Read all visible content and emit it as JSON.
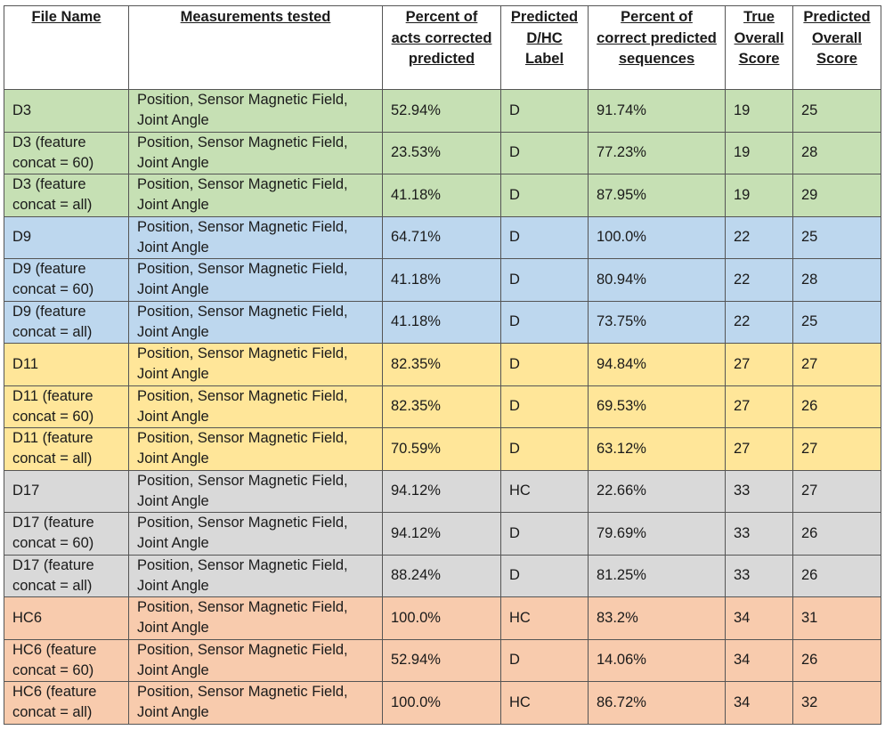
{
  "table": {
    "headers": [
      "File Name",
      "Measurements tested",
      "Percent of acts corrected predicted",
      "Predicted D/HC Label",
      "Percent of correct predicted sequences",
      "True Overall Score",
      "Predicted Overall Score"
    ],
    "row_colors": {
      "green": "#c6e0b4",
      "blue": "#bdd7ee",
      "yellow": "#ffe699",
      "gray": "#d9d9d9",
      "orange": "#f8cbad"
    },
    "rows": [
      {
        "group": "green",
        "cells": [
          "D3",
          "Position, Sensor Magnetic Field, Joint Angle",
          "52.94%",
          "D",
          "91.74%",
          "19",
          "25"
        ]
      },
      {
        "group": "green",
        "cells": [
          "D3 (feature concat = 60)",
          "Position, Sensor Magnetic Field, Joint Angle",
          "23.53%",
          "D",
          "77.23%",
          "19",
          "28"
        ]
      },
      {
        "group": "green",
        "cells": [
          "D3 (feature concat = all)",
          "Position, Sensor Magnetic Field, Joint Angle",
          "41.18%",
          "D",
          "87.95%",
          "19",
          "29"
        ]
      },
      {
        "group": "blue",
        "cells": [
          "D9",
          "Position, Sensor Magnetic Field, Joint Angle",
          "64.71%",
          "D",
          "100.0%",
          "22",
          "25"
        ]
      },
      {
        "group": "blue",
        "cells": [
          "D9 (feature concat = 60)",
          "Position, Sensor Magnetic Field, Joint Angle",
          "41.18%",
          "D",
          "80.94%",
          "22",
          "28"
        ]
      },
      {
        "group": "blue",
        "cells": [
          "D9 (feature concat = all)",
          "Position, Sensor Magnetic Field, Joint Angle",
          "41.18%",
          "D",
          "73.75%",
          "22",
          "25"
        ]
      },
      {
        "group": "yellow",
        "cells": [
          "D11",
          "Position, Sensor Magnetic Field, Joint Angle",
          "82.35%",
          "D",
          "94.84%",
          "27",
          "27"
        ]
      },
      {
        "group": "yellow",
        "cells": [
          "D11 (feature concat = 60)",
          "Position, Sensor Magnetic Field, Joint Angle",
          "82.35%",
          "D",
          "69.53%",
          "27",
          "26"
        ]
      },
      {
        "group": "yellow",
        "cells": [
          "D11 (feature concat = all)",
          "Position, Sensor Magnetic Field, Joint Angle",
          "70.59%",
          "D",
          "63.12%",
          "27",
          "27"
        ]
      },
      {
        "group": "gray",
        "cells": [
          "D17",
          "Position, Sensor Magnetic Field, Joint Angle",
          "94.12%",
          "HC",
          "22.66%",
          "33",
          "27"
        ]
      },
      {
        "group": "gray",
        "cells": [
          "D17 (feature concat = 60)",
          "Position, Sensor Magnetic Field, Joint Angle",
          "94.12%",
          "D",
          "79.69%",
          "33",
          "26"
        ]
      },
      {
        "group": "gray",
        "cells": [
          "D17 (feature concat = all)",
          "Position, Sensor Magnetic Field, Joint Angle",
          "88.24%",
          "D",
          "81.25%",
          "33",
          "26"
        ]
      },
      {
        "group": "orange",
        "cells": [
          "HC6",
          "Position, Sensor Magnetic Field, Joint Angle",
          "100.0%",
          "HC",
          "83.2%",
          "34",
          "31"
        ]
      },
      {
        "group": "orange",
        "cells": [
          "HC6 (feature concat = 60)",
          "Position, Sensor Magnetic Field, Joint Angle",
          "52.94%",
          "D",
          "14.06%",
          "34",
          "26"
        ]
      },
      {
        "group": "orange",
        "cells": [
          "HC6 (feature concat = all)",
          "Position, Sensor Magnetic Field, Joint Angle",
          "100.0%",
          "HC",
          "86.72%",
          "34",
          "32"
        ]
      }
    ]
  }
}
